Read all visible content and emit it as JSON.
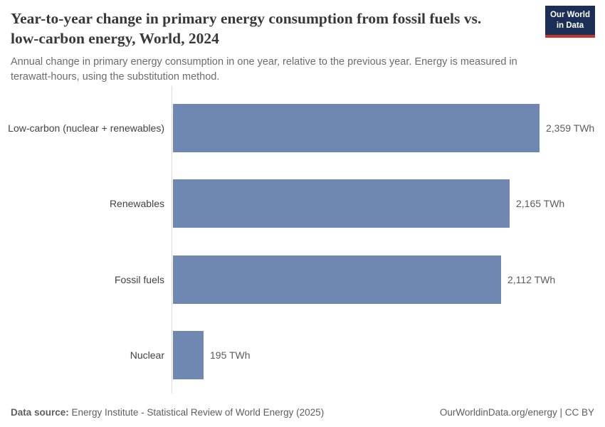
{
  "header": {
    "title": "Year-to-year change in primary energy consumption from fossil fuels vs. low-carbon energy, World, 2024",
    "subtitle": "Annual change in primary energy consumption in one year, relative to the previous year. Energy is measured in terawatt-hours, using the substitution method."
  },
  "logo": {
    "line1": "Our World",
    "line2": "in Data",
    "bg_color": "#1b2f56",
    "accent_color": "#c4352c"
  },
  "chart_data": {
    "type": "bar",
    "orientation": "horizontal",
    "title": "Year-to-year change in primary energy consumption from fossil fuels vs. low-carbon energy, World, 2024",
    "categories": [
      "Low-carbon (nuclear + renewables)",
      "Renewables",
      "Fossil fuels",
      "Nuclear"
    ],
    "values": [
      2359,
      2165,
      2112,
      195
    ],
    "value_labels": [
      "2,359 TWh",
      "2,165 TWh",
      "2,112 TWh",
      "195 TWh"
    ],
    "unit": "TWh",
    "xlim": [
      0,
      2359
    ],
    "bar_color": "#6e88b2",
    "axis_color": "#d9d9d9",
    "grid": false,
    "legend": "none"
  },
  "footer": {
    "source_label": "Data source:",
    "source_text": " Energy Institute - Statistical Review of World Energy (2025)",
    "credit": "OurWorldinData.org/energy | CC BY"
  }
}
